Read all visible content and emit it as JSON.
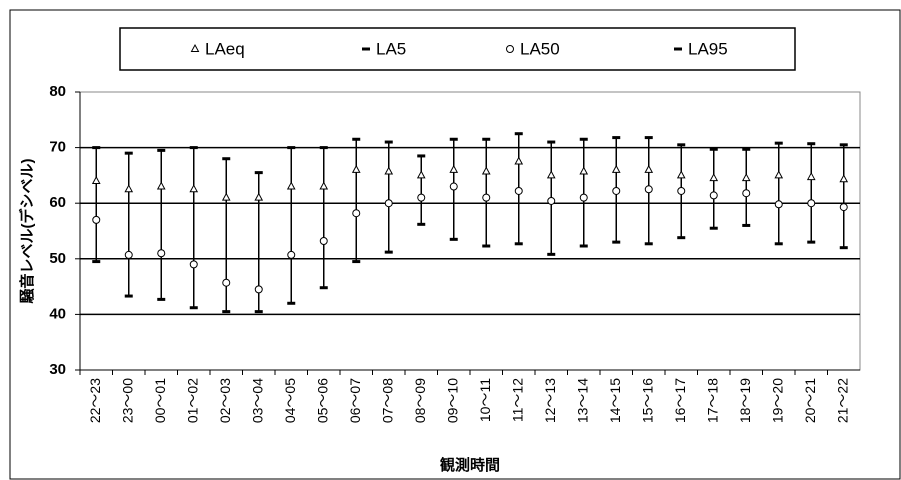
{
  "chart_data": {
    "type": "range",
    "y_label": "騒音レベル(デシベル)",
    "x_label": "観測時間",
    "categories": [
      "22～23",
      "23～00",
      "00～01",
      "01～02",
      "02～03",
      "03～04",
      "04～05",
      "05～06",
      "06～07",
      "07～08",
      "08～09",
      "09～10",
      "10～11",
      "11～12",
      "12～13",
      "13～14",
      "14～15",
      "15～16",
      "16～17",
      "17～18",
      "18～19",
      "19～20",
      "20～21",
      "21～22"
    ],
    "series": [
      {
        "name": "LAeq",
        "color": "#000000",
        "marker": "triangle",
        "values": [
          64,
          62.5,
          63,
          62.5,
          61,
          61,
          63,
          63,
          66,
          65.7,
          65,
          66,
          65.7,
          67.5,
          65,
          65.7,
          66,
          66,
          65,
          64.5,
          64.5,
          65,
          64.7,
          64.3
        ]
      },
      {
        "name": "LA5",
        "color": "#000000",
        "marker": "dash",
        "values": [
          70,
          69,
          69.5,
          70,
          68,
          65.5,
          70,
          70,
          71.5,
          71,
          68.5,
          71.5,
          71.5,
          72.5,
          71,
          71.5,
          71.8,
          71.8,
          70.5,
          69.7,
          69.7,
          70.8,
          70.7,
          70.5
        ]
      },
      {
        "name": "LA50",
        "color": "#000000",
        "marker": "circle",
        "values": [
          57,
          50.7,
          51,
          49,
          45.7,
          44.5,
          50.7,
          53.2,
          58.2,
          60,
          61,
          63,
          61,
          62.2,
          60.4,
          61,
          62.2,
          62.5,
          62.2,
          61.4,
          61.8,
          59.8,
          60,
          59.3
        ]
      },
      {
        "name": "LA95",
        "color": "#000000",
        "marker": "dash",
        "values": [
          49.5,
          43.3,
          42.7,
          41.2,
          40.5,
          40.5,
          42,
          44.8,
          49.5,
          51.2,
          56.2,
          53.5,
          52.3,
          52.7,
          50.8,
          52.3,
          53,
          52.7,
          53.8,
          55.5,
          56,
          52.7,
          53,
          52
        ]
      }
    ],
    "ylim": [
      30,
      80
    ],
    "yticks": [
      30,
      40,
      50,
      60,
      70,
      80
    ],
    "grid": true,
    "legend": "top"
  }
}
